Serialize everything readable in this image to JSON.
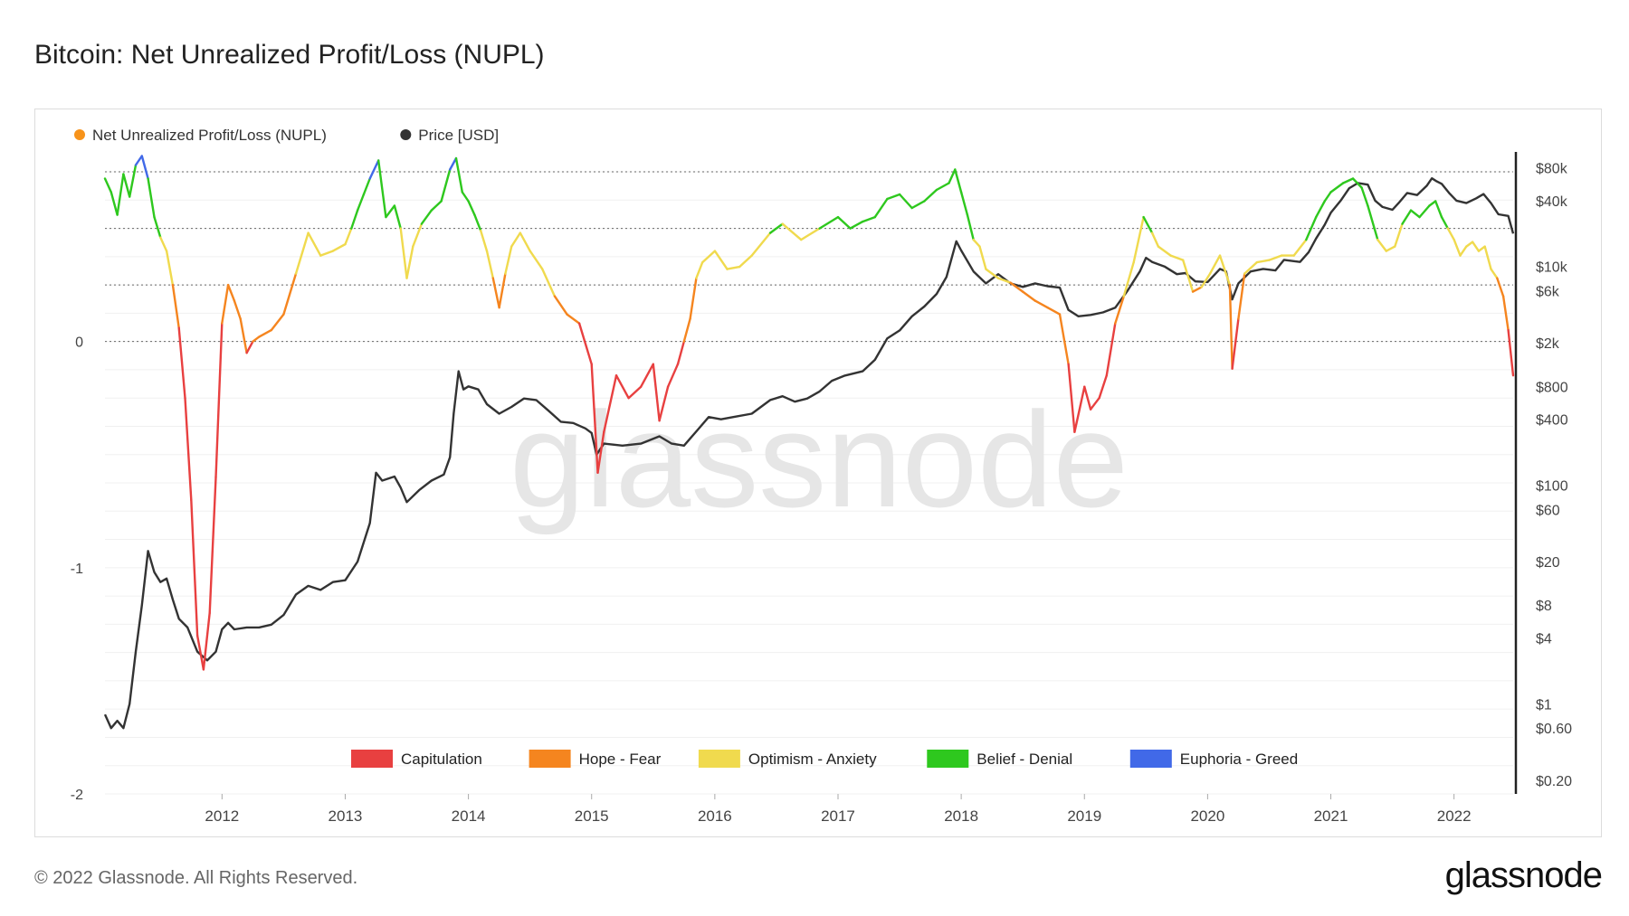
{
  "page": {
    "title": "Bitcoin: Net Unrealized Profit/Loss (NUPL)",
    "footer": "© 2022 Glassnode. All Rights Reserved.",
    "brand": "glassnode",
    "watermark": "glassnode"
  },
  "chart_data": {
    "type": "line",
    "title": "Bitcoin: Net Unrealized Profit/Loss (NUPL)",
    "legend_position": "top-left",
    "series": [
      {
        "name": "Net Unrealized Profit/Loss (NUPL)",
        "color": "#f7931a",
        "axis": "left"
      },
      {
        "name": "Price [USD]",
        "color": "#333333",
        "axis": "right"
      }
    ],
    "left_axis": {
      "ticks": [
        {
          "v": 0,
          "label": "0"
        },
        {
          "v": -1,
          "label": "-1"
        },
        {
          "v": -2,
          "label": "-2"
        }
      ],
      "range": [
        -2,
        0.87
      ]
    },
    "right_axis": {
      "scale": "log",
      "range": [
        0.15,
        130000
      ],
      "ticks": [
        {
          "v": 80000,
          "label": "$80k"
        },
        {
          "v": 40000,
          "label": "$40k"
        },
        {
          "v": 10000,
          "label": "$10k"
        },
        {
          "v": 6000,
          "label": "$6k"
        },
        {
          "v": 2000,
          "label": "$2k"
        },
        {
          "v": 800,
          "label": "$800"
        },
        {
          "v": 400,
          "label": "$400"
        },
        {
          "v": 100,
          "label": "$100"
        },
        {
          "v": 60,
          "label": "$60"
        },
        {
          "v": 20,
          "label": "$20"
        },
        {
          "v": 8,
          "label": "$8"
        },
        {
          "v": 4,
          "label": "$4"
        },
        {
          "v": 1,
          "label": "$1"
        },
        {
          "v": 0.6,
          "label": "$0.60"
        },
        {
          "v": 0.2,
          "label": "$0.20"
        }
      ]
    },
    "x_axis": {
      "range": [
        2011.05,
        2022.48
      ],
      "ticks": [
        "2012",
        "2013",
        "2014",
        "2015",
        "2016",
        "2017",
        "2018",
        "2019",
        "2020",
        "2021",
        "2022"
      ]
    },
    "zone_lines": [
      0.75,
      0.5,
      0.25,
      0
    ],
    "zones": [
      {
        "label": "Capitulation",
        "color": "#e84040"
      },
      {
        "label": "Hope - Fear",
        "color": "#f5851f"
      },
      {
        "label": "Optimism - Anxiety",
        "color": "#f0da4e"
      },
      {
        "label": "Belief - Denial",
        "color": "#2ec81e"
      },
      {
        "label": "Euphoria - Greed",
        "color": "#4169e8"
      }
    ],
    "nupl": [
      [
        2011.05,
        0.72
      ],
      [
        2011.1,
        0.66
      ],
      [
        2011.15,
        0.56
      ],
      [
        2011.2,
        0.74
      ],
      [
        2011.25,
        0.64
      ],
      [
        2011.3,
        0.78
      ],
      [
        2011.35,
        0.82
      ],
      [
        2011.4,
        0.72
      ],
      [
        2011.45,
        0.55
      ],
      [
        2011.5,
        0.46
      ],
      [
        2011.55,
        0.4
      ],
      [
        2011.6,
        0.25
      ],
      [
        2011.65,
        0.06
      ],
      [
        2011.7,
        -0.25
      ],
      [
        2011.75,
        -0.7
      ],
      [
        2011.8,
        -1.3
      ],
      [
        2011.85,
        -1.45
      ],
      [
        2011.9,
        -1.2
      ],
      [
        2011.95,
        -0.6
      ],
      [
        2012.0,
        0.08
      ],
      [
        2012.05,
        0.25
      ],
      [
        2012.1,
        0.18
      ],
      [
        2012.15,
        0.1
      ],
      [
        2012.2,
        -0.05
      ],
      [
        2012.25,
        0.0
      ],
      [
        2012.3,
        0.02
      ],
      [
        2012.4,
        0.05
      ],
      [
        2012.5,
        0.12
      ],
      [
        2012.6,
        0.3
      ],
      [
        2012.7,
        0.48
      ],
      [
        2012.8,
        0.38
      ],
      [
        2012.9,
        0.4
      ],
      [
        2013.0,
        0.43
      ],
      [
        2013.05,
        0.5
      ],
      [
        2013.1,
        0.58
      ],
      [
        2013.15,
        0.65
      ],
      [
        2013.2,
        0.72
      ],
      [
        2013.27,
        0.8
      ],
      [
        2013.33,
        0.55
      ],
      [
        2013.4,
        0.6
      ],
      [
        2013.45,
        0.5
      ],
      [
        2013.5,
        0.28
      ],
      [
        2013.55,
        0.42
      ],
      [
        2013.62,
        0.52
      ],
      [
        2013.7,
        0.58
      ],
      [
        2013.78,
        0.62
      ],
      [
        2013.85,
        0.76
      ],
      [
        2013.9,
        0.81
      ],
      [
        2013.95,
        0.66
      ],
      [
        2014.0,
        0.62
      ],
      [
        2014.05,
        0.56
      ],
      [
        2014.1,
        0.49
      ],
      [
        2014.15,
        0.4
      ],
      [
        2014.2,
        0.28
      ],
      [
        2014.25,
        0.15
      ],
      [
        2014.3,
        0.3
      ],
      [
        2014.35,
        0.42
      ],
      [
        2014.42,
        0.48
      ],
      [
        2014.5,
        0.4
      ],
      [
        2014.6,
        0.32
      ],
      [
        2014.7,
        0.2
      ],
      [
        2014.8,
        0.12
      ],
      [
        2014.9,
        0.08
      ],
      [
        2015.0,
        -0.1
      ],
      [
        2015.05,
        -0.58
      ],
      [
        2015.1,
        -0.4
      ],
      [
        2015.2,
        -0.15
      ],
      [
        2015.3,
        -0.25
      ],
      [
        2015.4,
        -0.2
      ],
      [
        2015.5,
        -0.1
      ],
      [
        2015.55,
        -0.35
      ],
      [
        2015.62,
        -0.2
      ],
      [
        2015.7,
        -0.1
      ],
      [
        2015.75,
        0.0
      ],
      [
        2015.8,
        0.1
      ],
      [
        2015.85,
        0.28
      ],
      [
        2015.9,
        0.35
      ],
      [
        2016.0,
        0.4
      ],
      [
        2016.1,
        0.32
      ],
      [
        2016.2,
        0.33
      ],
      [
        2016.3,
        0.38
      ],
      [
        2016.45,
        0.48
      ],
      [
        2016.55,
        0.52
      ],
      [
        2016.7,
        0.45
      ],
      [
        2016.85,
        0.5
      ],
      [
        2017.0,
        0.55
      ],
      [
        2017.1,
        0.5
      ],
      [
        2017.2,
        0.53
      ],
      [
        2017.3,
        0.55
      ],
      [
        2017.4,
        0.63
      ],
      [
        2017.5,
        0.65
      ],
      [
        2017.6,
        0.59
      ],
      [
        2017.7,
        0.62
      ],
      [
        2017.8,
        0.67
      ],
      [
        2017.9,
        0.7
      ],
      [
        2017.95,
        0.76
      ],
      [
        2018.0,
        0.66
      ],
      [
        2018.05,
        0.56
      ],
      [
        2018.1,
        0.45
      ],
      [
        2018.15,
        0.42
      ],
      [
        2018.2,
        0.32
      ],
      [
        2018.3,
        0.28
      ],
      [
        2018.4,
        0.26
      ],
      [
        2018.5,
        0.22
      ],
      [
        2018.6,
        0.18
      ],
      [
        2018.7,
        0.15
      ],
      [
        2018.8,
        0.12
      ],
      [
        2018.87,
        -0.1
      ],
      [
        2018.92,
        -0.4
      ],
      [
        2019.0,
        -0.2
      ],
      [
        2019.05,
        -0.3
      ],
      [
        2019.12,
        -0.25
      ],
      [
        2019.18,
        -0.15
      ],
      [
        2019.25,
        0.08
      ],
      [
        2019.32,
        0.2
      ],
      [
        2019.4,
        0.35
      ],
      [
        2019.48,
        0.55
      ],
      [
        2019.55,
        0.48
      ],
      [
        2019.6,
        0.42
      ],
      [
        2019.7,
        0.38
      ],
      [
        2019.8,
        0.36
      ],
      [
        2019.88,
        0.22
      ],
      [
        2019.95,
        0.24
      ],
      [
        2020.02,
        0.3
      ],
      [
        2020.1,
        0.38
      ],
      [
        2020.18,
        0.25
      ],
      [
        2020.2,
        -0.12
      ],
      [
        2020.25,
        0.1
      ],
      [
        2020.3,
        0.3
      ],
      [
        2020.4,
        0.35
      ],
      [
        2020.5,
        0.36
      ],
      [
        2020.6,
        0.38
      ],
      [
        2020.7,
        0.38
      ],
      [
        2020.8,
        0.45
      ],
      [
        2020.88,
        0.55
      ],
      [
        2020.95,
        0.62
      ],
      [
        2021.0,
        0.66
      ],
      [
        2021.1,
        0.7
      ],
      [
        2021.18,
        0.72
      ],
      [
        2021.25,
        0.68
      ],
      [
        2021.3,
        0.6
      ],
      [
        2021.38,
        0.45
      ],
      [
        2021.45,
        0.4
      ],
      [
        2021.52,
        0.42
      ],
      [
        2021.58,
        0.52
      ],
      [
        2021.65,
        0.58
      ],
      [
        2021.72,
        0.55
      ],
      [
        2021.8,
        0.6
      ],
      [
        2021.85,
        0.62
      ],
      [
        2021.9,
        0.55
      ],
      [
        2021.95,
        0.5
      ],
      [
        2022.0,
        0.45
      ],
      [
        2022.05,
        0.38
      ],
      [
        2022.1,
        0.42
      ],
      [
        2022.15,
        0.44
      ],
      [
        2022.2,
        0.4
      ],
      [
        2022.25,
        0.42
      ],
      [
        2022.3,
        0.32
      ],
      [
        2022.35,
        0.28
      ],
      [
        2022.4,
        0.2
      ],
      [
        2022.44,
        0.05
      ],
      [
        2022.48,
        -0.15
      ]
    ],
    "price": [
      [
        2011.05,
        0.8
      ],
      [
        2011.1,
        0.6
      ],
      [
        2011.15,
        0.7
      ],
      [
        2011.2,
        0.6
      ],
      [
        2011.25,
        1.0
      ],
      [
        2011.3,
        3.0
      ],
      [
        2011.35,
        8.0
      ],
      [
        2011.4,
        25
      ],
      [
        2011.45,
        16
      ],
      [
        2011.5,
        13
      ],
      [
        2011.55,
        14
      ],
      [
        2011.6,
        9
      ],
      [
        2011.65,
        6
      ],
      [
        2011.72,
        5
      ],
      [
        2011.8,
        3
      ],
      [
        2011.88,
        2.5
      ],
      [
        2011.95,
        3.0
      ],
      [
        2012.0,
        4.8
      ],
      [
        2012.05,
        5.5
      ],
      [
        2012.1,
        4.8
      ],
      [
        2012.2,
        5.0
      ],
      [
        2012.3,
        5.0
      ],
      [
        2012.4,
        5.3
      ],
      [
        2012.5,
        6.5
      ],
      [
        2012.6,
        10
      ],
      [
        2012.7,
        12
      ],
      [
        2012.8,
        11
      ],
      [
        2012.9,
        13
      ],
      [
        2013.0,
        13.5
      ],
      [
        2013.1,
        20
      ],
      [
        2013.2,
        45
      ],
      [
        2013.25,
        130
      ],
      [
        2013.3,
        110
      ],
      [
        2013.4,
        120
      ],
      [
        2013.45,
        95
      ],
      [
        2013.5,
        70
      ],
      [
        2013.6,
        90
      ],
      [
        2013.7,
        110
      ],
      [
        2013.8,
        125
      ],
      [
        2013.85,
        180
      ],
      [
        2013.88,
        450
      ],
      [
        2013.92,
        1100
      ],
      [
        2013.96,
        750
      ],
      [
        2014.0,
        800
      ],
      [
        2014.08,
        750
      ],
      [
        2014.15,
        550
      ],
      [
        2014.25,
        450
      ],
      [
        2014.35,
        520
      ],
      [
        2014.45,
        620
      ],
      [
        2014.55,
        600
      ],
      [
        2014.65,
        480
      ],
      [
        2014.75,
        380
      ],
      [
        2014.85,
        370
      ],
      [
        2014.95,
        330
      ],
      [
        2015.0,
        300
      ],
      [
        2015.04,
        190
      ],
      [
        2015.1,
        240
      ],
      [
        2015.25,
        230
      ],
      [
        2015.4,
        240
      ],
      [
        2015.55,
        280
      ],
      [
        2015.65,
        240
      ],
      [
        2015.75,
        230
      ],
      [
        2015.85,
        310
      ],
      [
        2015.95,
        420
      ],
      [
        2016.05,
        400
      ],
      [
        2016.15,
        420
      ],
      [
        2016.3,
        450
      ],
      [
        2016.45,
        600
      ],
      [
        2016.55,
        650
      ],
      [
        2016.65,
        580
      ],
      [
        2016.75,
        620
      ],
      [
        2016.85,
        720
      ],
      [
        2016.95,
        900
      ],
      [
        2017.05,
        1000
      ],
      [
        2017.2,
        1100
      ],
      [
        2017.3,
        1400
      ],
      [
        2017.4,
        2200
      ],
      [
        2017.5,
        2600
      ],
      [
        2017.6,
        3500
      ],
      [
        2017.7,
        4300
      ],
      [
        2017.8,
        5600
      ],
      [
        2017.88,
        8000
      ],
      [
        2017.96,
        17000
      ],
      [
        2018.0,
        14000
      ],
      [
        2018.1,
        9000
      ],
      [
        2018.2,
        7000
      ],
      [
        2018.3,
        8500
      ],
      [
        2018.4,
        7000
      ],
      [
        2018.5,
        6500
      ],
      [
        2018.6,
        7000
      ],
      [
        2018.7,
        6600
      ],
      [
        2018.8,
        6400
      ],
      [
        2018.87,
        4000
      ],
      [
        2018.95,
        3500
      ],
      [
        2019.05,
        3600
      ],
      [
        2019.15,
        3800
      ],
      [
        2019.25,
        4200
      ],
      [
        2019.35,
        6000
      ],
      [
        2019.45,
        9000
      ],
      [
        2019.5,
        12000
      ],
      [
        2019.55,
        11000
      ],
      [
        2019.65,
        10000
      ],
      [
        2019.75,
        8500
      ],
      [
        2019.82,
        8700
      ],
      [
        2019.9,
        7300
      ],
      [
        2020.0,
        7200
      ],
      [
        2020.1,
        9500
      ],
      [
        2020.15,
        9000
      ],
      [
        2020.2,
        5000
      ],
      [
        2020.25,
        7000
      ],
      [
        2020.35,
        9000
      ],
      [
        2020.45,
        9500
      ],
      [
        2020.55,
        9200
      ],
      [
        2020.62,
        11500
      ],
      [
        2020.75,
        11000
      ],
      [
        2020.82,
        13500
      ],
      [
        2020.88,
        18000
      ],
      [
        2020.95,
        24000
      ],
      [
        2021.0,
        31000
      ],
      [
        2021.08,
        40000
      ],
      [
        2021.15,
        52000
      ],
      [
        2021.22,
        58000
      ],
      [
        2021.3,
        56000
      ],
      [
        2021.36,
        40000
      ],
      [
        2021.42,
        35000
      ],
      [
        2021.5,
        33000
      ],
      [
        2021.55,
        38000
      ],
      [
        2021.62,
        47000
      ],
      [
        2021.7,
        45000
      ],
      [
        2021.78,
        55000
      ],
      [
        2021.82,
        64000
      ],
      [
        2021.86,
        60000
      ],
      [
        2021.9,
        57000
      ],
      [
        2021.96,
        47000
      ],
      [
        2022.02,
        40000
      ],
      [
        2022.1,
        38000
      ],
      [
        2022.18,
        42000
      ],
      [
        2022.24,
        46000
      ],
      [
        2022.3,
        38000
      ],
      [
        2022.36,
        30000
      ],
      [
        2022.44,
        29000
      ],
      [
        2022.48,
        20000
      ]
    ]
  }
}
